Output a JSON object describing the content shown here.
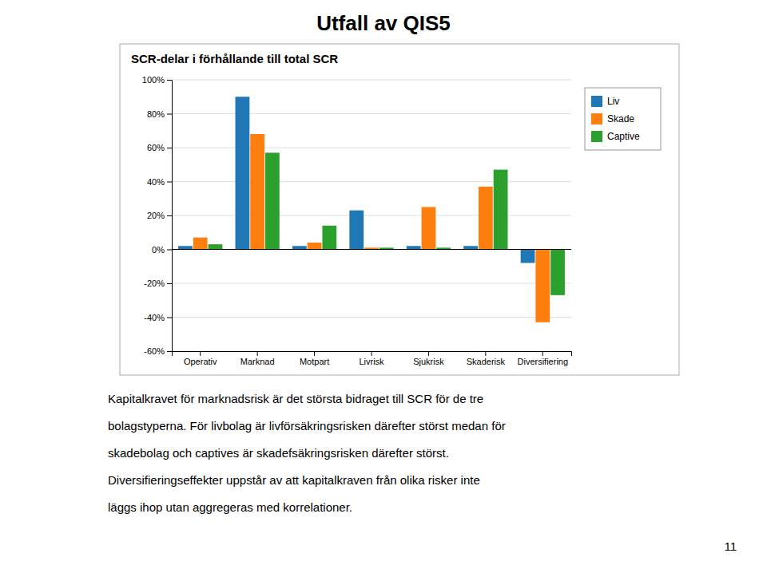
{
  "title": "Utfall av QIS5",
  "chart_data": {
    "type": "bar",
    "title": "SCR-delar i förhållande till total SCR",
    "categories": [
      "Operativ",
      "Marknad",
      "Motpart",
      "Livrisk",
      "Sjukrisk",
      "Skaderisk",
      "Diversifiering"
    ],
    "series": [
      {
        "name": "Liv",
        "values": [
          2,
          90,
          2,
          23,
          2,
          2,
          -8
        ]
      },
      {
        "name": "Skade",
        "values": [
          7,
          68,
          4,
          1,
          25,
          37,
          -43
        ]
      },
      {
        "name": "Captive",
        "values": [
          3,
          57,
          14,
          1,
          1,
          47,
          -27
        ]
      }
    ],
    "ylim": [
      -60,
      100
    ],
    "yticks": [
      {
        "value": -60,
        "label": "-60%"
      },
      {
        "value": -40,
        "label": "-40%"
      },
      {
        "value": -20,
        "label": "-20%"
      },
      {
        "value": 0,
        "label": "0%"
      },
      {
        "value": 20,
        "label": "20%"
      },
      {
        "value": 40,
        "label": "40%"
      },
      {
        "value": 60,
        "label": "60%"
      },
      {
        "value": 80,
        "label": "80%"
      },
      {
        "value": 100,
        "label": "100%"
      }
    ],
    "grid": true,
    "legend": "right"
  },
  "paragraphs": [
    "Kapitalkravet för marknadsrisk är det största bidraget till SCR för de tre",
    "bolagstyperna. För livbolag är livförsäkringsrisken därefter störst medan för",
    "skadebolag och captives är skadefsäkringsrisken därefter störst.",
    "Diversifieringseffekter uppstår av att kapitalkraven från olika risker inte",
    "läggs ihop utan aggregeras med korrelationer."
  ],
  "page_number": "11"
}
